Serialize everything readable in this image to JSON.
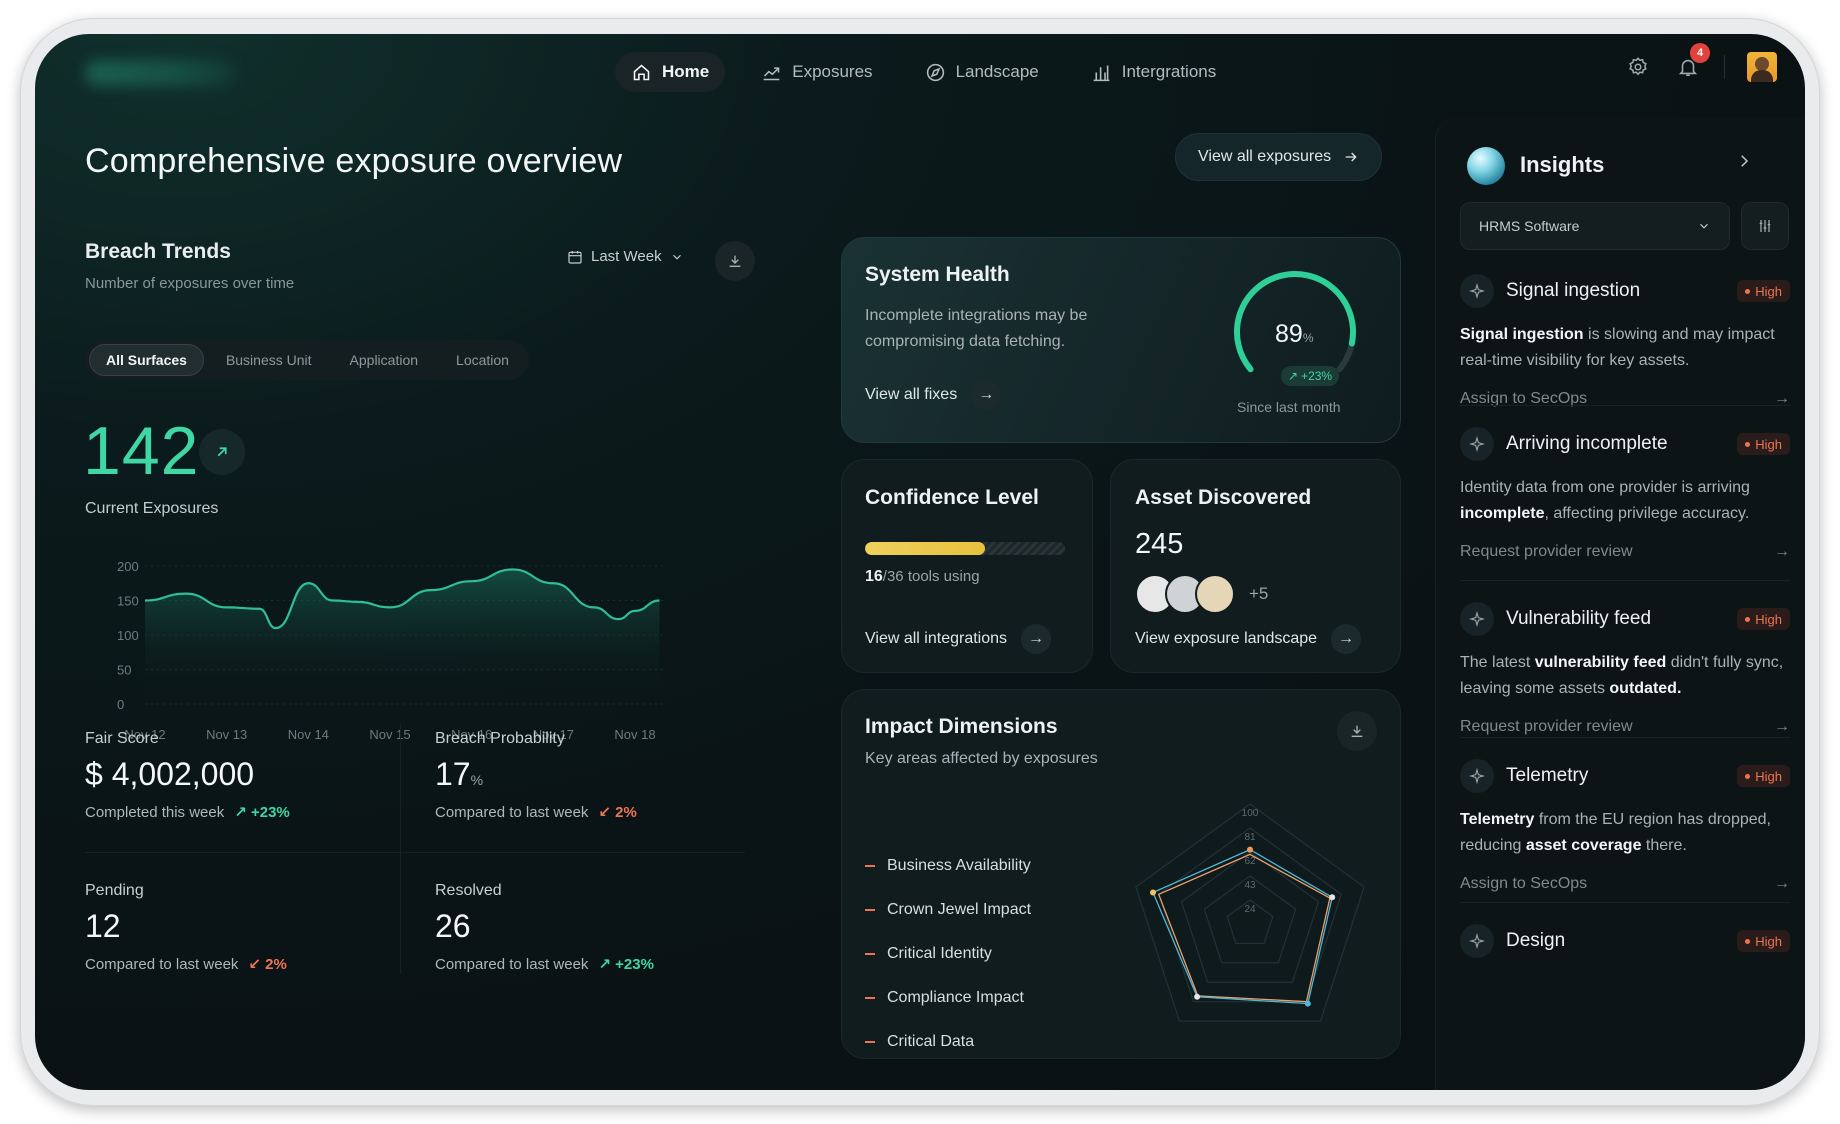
{
  "nav": {
    "items": [
      {
        "label": "Home",
        "icon": "home-icon",
        "active": true
      },
      {
        "label": "Exposures",
        "icon": "trend-icon",
        "active": false
      },
      {
        "label": "Landscape",
        "icon": "compass-icon",
        "active": false
      },
      {
        "label": "Intergrations",
        "icon": "bar-chart-icon",
        "active": false
      }
    ],
    "notification_count": "4"
  },
  "page": {
    "title": "Comprehensive exposure overview",
    "view_all_label": "View all exposures"
  },
  "breach_trends": {
    "title": "Breach Trends",
    "subtitle": "Number of exposures over time",
    "period": "Last Week",
    "segments": [
      "All Surfaces",
      "Business Unit",
      "Application",
      "Location"
    ],
    "active_segment": "All Surfaces",
    "current_value": "142",
    "current_label": "Current Exposures"
  },
  "chart_data": {
    "type": "area",
    "x": [
      "Nov 12",
      "Nov 13",
      "Nov 14",
      "Nov 15",
      "Nov 16",
      "Nov 17",
      "Nov 18"
    ],
    "y_ticks": [
      "200",
      "150",
      "100",
      "50",
      "0"
    ],
    "ylim": [
      0,
      200
    ],
    "series": [
      {
        "points": [
          [
            "Nov 12",
            150
          ],
          [
            "Nov 12.5",
            160
          ],
          [
            "Nov 13",
            140
          ],
          [
            "Nov 13.4",
            138
          ],
          [
            "Nov 13.6",
            110
          ],
          [
            "Nov 14",
            175
          ],
          [
            "Nov 14.3",
            150
          ],
          [
            "Nov 14.6",
            148
          ],
          [
            "Nov 15",
            140
          ],
          [
            "Nov 15.5",
            165
          ],
          [
            "Nov 16",
            178
          ],
          [
            "Nov 16.5",
            195
          ],
          [
            "Nov 17",
            175
          ],
          [
            "Nov 17.5",
            140
          ],
          [
            "Nov 17.8",
            123
          ],
          [
            "Nov 18",
            135
          ],
          [
            "Nov 18.3",
            150
          ]
        ]
      }
    ],
    "color": "#2fbf95",
    "grid": true
  },
  "stats": [
    {
      "label": "Fair Score",
      "value": "$ 4,002,000",
      "unit": "",
      "compare": "Completed this week",
      "delta": "+23%",
      "direction": "up"
    },
    {
      "label": "Breach Probability",
      "value": "17",
      "unit": "%",
      "compare": "Compared to last week",
      "delta": "2%",
      "direction": "down"
    },
    {
      "label": "Pending",
      "value": "12",
      "unit": "",
      "compare": "Compared to last week",
      "delta": "2%",
      "direction": "down"
    },
    {
      "label": "Resolved",
      "value": "26",
      "unit": "",
      "compare": "Compared to last week",
      "delta": "+23%",
      "direction": "up"
    }
  ],
  "system_health": {
    "title": "System Health",
    "text": "Incomplete integrations may be compromising data fetching.",
    "link": "View all fixes",
    "score": "89",
    "score_unit": "%",
    "score_fraction": 0.89,
    "delta": "+23%",
    "caption": "Since last month"
  },
  "confidence": {
    "title": "Confidence Level",
    "tools_used": "16",
    "tools_total": "/36",
    "tools_suffix": "tools using",
    "fraction": 0.6,
    "link": "View all integrations"
  },
  "assets": {
    "title": "Asset Discovered",
    "count": "245",
    "more": "+5",
    "link": "View exposure landscape",
    "dot_colors": [
      "#e7e7e7",
      "#cfd3d6",
      "#e6d6b8"
    ]
  },
  "impact": {
    "title": "Impact Dimensions",
    "subtitle": "Key areas affected by exposures",
    "dimensions": [
      "Business Availability",
      "Crown Jewel Impact",
      "Critical Identity",
      "Compliance Impact",
      "Critical Data"
    ],
    "radar_ticks": [
      "100",
      "81",
      "62",
      "43",
      "24"
    ]
  },
  "insights": {
    "title": "Insights",
    "filter_value": "HRMS Software",
    "items": [
      {
        "name": "Signal ingestion",
        "badge": "High",
        "desc": [
          {
            "b": "Signal ingestion"
          },
          {
            "t": " is slowing and may impact real-time visibility for key assets."
          }
        ],
        "action": "Assign to SecOps"
      },
      {
        "name": "Arriving incomplete",
        "badge": "High",
        "desc": [
          {
            "t": "Identity data from one provider is arriving "
          },
          {
            "b": "incomplete"
          },
          {
            "t": ", affecting privilege accuracy."
          }
        ],
        "action": "Request provider review"
      },
      {
        "name": "Vulnerability feed",
        "badge": "High",
        "desc": [
          {
            "t": "The latest "
          },
          {
            "b": "vulnerability feed"
          },
          {
            "t": " didn't fully sync, leaving some assets "
          },
          {
            "b": "outdated."
          }
        ],
        "action": "Request provider review"
      },
      {
        "name": "Telemetry",
        "badge": "High",
        "desc": [
          {
            "b": "Telemetry"
          },
          {
            "t": " from the EU region has dropped, reducing "
          },
          {
            "b": "asset coverage"
          },
          {
            "t": " there."
          }
        ],
        "action": "Assign to SecOps"
      },
      {
        "name": "Design",
        "badge": "High",
        "desc": [],
        "action": ""
      }
    ]
  }
}
